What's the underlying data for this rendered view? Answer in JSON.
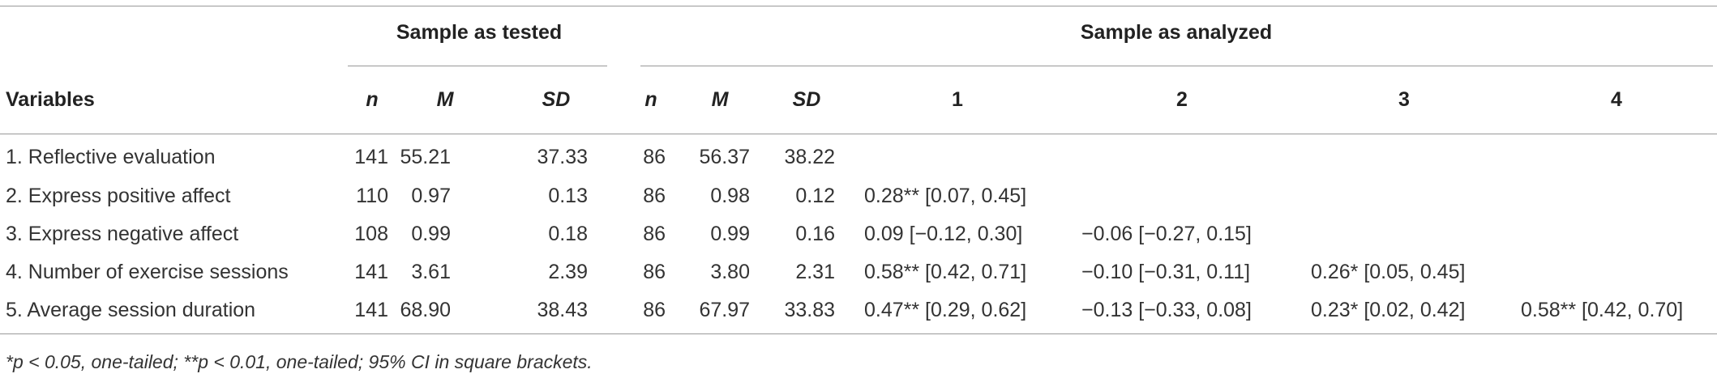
{
  "table": {
    "group_headers": [
      "Sample as tested",
      "Sample as analyzed"
    ],
    "stub_header": "Variables",
    "columns": [
      "n",
      "M",
      "SD",
      "n",
      "M",
      "SD",
      "1",
      "2",
      "3",
      "4"
    ],
    "rows": [
      [
        "1. Reflective evaluation",
        "141",
        "55.21",
        "37.33",
        "86",
        "56.37",
        "38.22"
      ],
      [
        "2. Express positive affect",
        "110",
        "0.97",
        "0.13",
        "86",
        "0.98",
        "0.12",
        "0.28** [0.07, 0.45]"
      ],
      [
        "3. Express negative affect",
        "108",
        "0.99",
        "0.18",
        "86",
        "0.99",
        "0.16",
        "0.09 [−0.12, 0.30]",
        "−0.06 [−0.27, 0.15]"
      ],
      [
        "4. Number of exercise sessions",
        "141",
        "3.61",
        "2.39",
        "86",
        "3.80",
        "2.31",
        "0.58** [0.42, 0.71]",
        "−0.10 [−0.31, 0.11]",
        "0.26* [0.05, 0.45]"
      ],
      [
        "5. Average session duration",
        "141",
        "68.90",
        "38.43",
        "86",
        "67.97",
        "33.83",
        "0.47** [0.29, 0.62]",
        "−0.13 [−0.33, 0.08]",
        "0.23* [0.02, 0.42]",
        "0.58** [0.42, 0.70]"
      ]
    ],
    "footnote": "*p < 0.05, one-tailed; **p < 0.01, one-tailed; 95% CI in square brackets."
  }
}
